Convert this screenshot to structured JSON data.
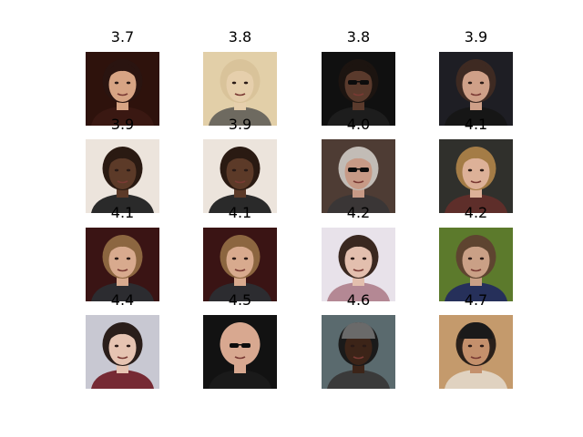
{
  "figure": {
    "background": "#ffffff",
    "grid": {
      "rows": 4,
      "cols": 4
    },
    "panels": [
      {
        "score": "3.7",
        "bg": "#2e120c",
        "skin": "#d7a484",
        "hair": "#2a1410",
        "shirt": "#3a1812"
      },
      {
        "score": "3.8",
        "bg": "#e2cfa8",
        "skin": "#e6cfac",
        "hair": "#d9c39a",
        "shirt": "#6e6a60"
      },
      {
        "score": "3.8",
        "bg": "#101010",
        "skin": "#5a3a2c",
        "hair": "#1c1410",
        "shirt": "#1d1d1d",
        "glasses": true
      },
      {
        "score": "3.9",
        "bg": "#1e1e24",
        "skin": "#cfa088",
        "hair": "#3e2a22",
        "shirt": "#161616"
      },
      {
        "score": "3.9",
        "bg": "#ece4dc",
        "skin": "#5c3a28",
        "hair": "#2a1a12",
        "shirt": "#2a2a2a"
      },
      {
        "score": "3.9",
        "bg": "#ece4dc",
        "skin": "#5c3a28",
        "hair": "#2a1a12",
        "shirt": "#2a2a2a"
      },
      {
        "score": "4.0",
        "bg": "#4e3c34",
        "skin": "#c79a86",
        "hair": "#c2bcb6",
        "shirt": "#3a3636",
        "glasses": true
      },
      {
        "score": "4.1",
        "bg": "#30302c",
        "skin": "#ddb198",
        "hair": "#a47c46",
        "shirt": "#5e2e2a"
      },
      {
        "score": "4.1",
        "bg": "#3a1414",
        "skin": "#d8aa8e",
        "hair": "#8c6640",
        "shirt": "#2c2c30"
      },
      {
        "score": "4.1",
        "bg": "#3a1414",
        "skin": "#d8aa8e",
        "hair": "#8c6640",
        "shirt": "#2c2c30"
      },
      {
        "score": "4.2",
        "bg": "#e8e2ea",
        "skin": "#e3bfae",
        "hair": "#3a2820",
        "shirt": "#b48894"
      },
      {
        "score": "4.2",
        "bg": "#5c7a2c",
        "skin": "#caa086",
        "hair": "#5e4430",
        "shirt": "#26305a"
      },
      {
        "score": "4.4",
        "bg": "#c8c8d2",
        "skin": "#e6c4b2",
        "hair": "#2a1e1a",
        "shirt": "#762a34"
      },
      {
        "score": "4.5",
        "bg": "#121212",
        "skin": "#d8a890",
        "hair": "#d8a890",
        "shirt": "#1a1a1a",
        "glasses": true
      },
      {
        "score": "4.6",
        "bg": "#5a6a6e",
        "skin": "#3c2418",
        "hair": "#1a1a1a",
        "shirt": "#3a3a3a",
        "cap": "#6a6a6a"
      },
      {
        "score": "4.7",
        "bg": "#c49a6c",
        "skin": "#c4906c",
        "hair": "#2a201a",
        "shirt": "#e0d2c0",
        "cap": "#1a1a1a"
      }
    ]
  }
}
